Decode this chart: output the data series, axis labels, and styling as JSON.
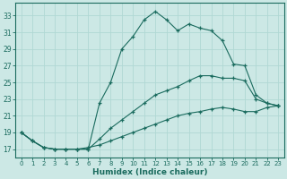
{
  "xlabel": "Humidex (Indice chaleur)",
  "bg_color": "#cce8e5",
  "grid_color": "#b0d8d4",
  "line_color": "#1a6b5e",
  "xlim": [
    -0.5,
    23.5
  ],
  "ylim": [
    16.0,
    34.5
  ],
  "yticks": [
    17,
    19,
    21,
    23,
    25,
    27,
    29,
    31,
    33
  ],
  "xticks": [
    0,
    1,
    2,
    3,
    4,
    5,
    6,
    7,
    8,
    9,
    10,
    11,
    12,
    13,
    14,
    15,
    16,
    17,
    18,
    19,
    20,
    21,
    22,
    23
  ],
  "line1_x": [
    0,
    1,
    2,
    3,
    4,
    5,
    6,
    7,
    8,
    9,
    10,
    11,
    12,
    13,
    14,
    15,
    16,
    17,
    18,
    19,
    20,
    21,
    22,
    23
  ],
  "line1_y": [
    19,
    18,
    17.2,
    17,
    17,
    17,
    17,
    22.5,
    25,
    29.0,
    30.5,
    32.5,
    33.5,
    32.5,
    31.2,
    32.0,
    31.5,
    31.2,
    30.0,
    27.2,
    27.0,
    23.5,
    22.5,
    22.2
  ],
  "line2_x": [
    0,
    1,
    2,
    3,
    4,
    5,
    6,
    7,
    8,
    9,
    10,
    11,
    12,
    13,
    14,
    15,
    16,
    17,
    18,
    19,
    20,
    21,
    22,
    23
  ],
  "line2_y": [
    19,
    18,
    17.2,
    17,
    17,
    17,
    17,
    18.2,
    19.5,
    20.5,
    21.5,
    22.5,
    23.5,
    24.0,
    24.5,
    25.2,
    25.8,
    25.8,
    25.5,
    25.5,
    25.2,
    23.0,
    22.5,
    22.2
  ],
  "line3_x": [
    0,
    1,
    2,
    3,
    4,
    5,
    6,
    7,
    8,
    9,
    10,
    11,
    12,
    13,
    14,
    15,
    16,
    17,
    18,
    19,
    20,
    21,
    22,
    23
  ],
  "line3_y": [
    19,
    18.0,
    17.2,
    17,
    17,
    17,
    17.2,
    17.5,
    18.0,
    18.5,
    19.0,
    19.5,
    20.0,
    20.5,
    21.0,
    21.3,
    21.5,
    21.8,
    22.0,
    21.8,
    21.5,
    21.5,
    22.0,
    22.2
  ]
}
